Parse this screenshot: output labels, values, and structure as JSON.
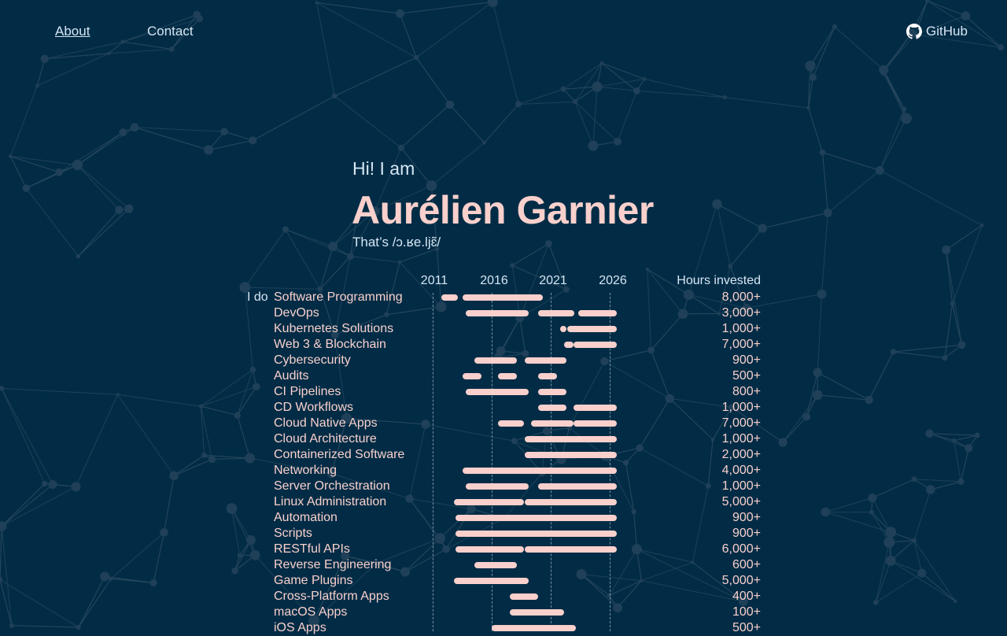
{
  "nav": {
    "about": "About",
    "contact": "Contact",
    "github": "GitHub",
    "github_icon": "github-icon"
  },
  "hero": {
    "greeting": "Hi! I am",
    "name": "Aurélien Garnier",
    "pronunciation": "That’s /ɔ.ʁe.ljɛ̃/"
  },
  "colors": {
    "background": "#022c46",
    "accent": "#f9d0cc",
    "text": "#d6e6f3"
  },
  "chart_data": {
    "type": "timeline",
    "prefix": "I do",
    "x_ticks": [
      "2011",
      "2016",
      "2021",
      "2026"
    ],
    "xlim": [
      2011,
      2026.6
    ],
    "grid": true,
    "value_header": "Hours invested",
    "rows": [
      {
        "label": "Software Programming",
        "hours": "8,000+",
        "spans": [
          [
            2011.7,
            2013.1
          ],
          [
            2013.5,
            2020.3
          ]
        ]
      },
      {
        "label": "DevOps",
        "hours": "3,000+",
        "spans": [
          [
            2013.8,
            2019.1
          ],
          [
            2019.9,
            2023.0
          ],
          [
            2023.3,
            2026.6
          ]
        ]
      },
      {
        "label": "Kubernetes Solutions",
        "hours": "1,000+",
        "spans": [
          [
            2021.8,
            2022.3
          ],
          [
            2022.4,
            2026.6
          ]
        ]
      },
      {
        "label": "Web 3 & Blockchain",
        "hours": "7,000+",
        "spans": [
          [
            2022.1,
            2022.9
          ],
          [
            2022.9,
            2026.6
          ]
        ]
      },
      {
        "label": "Cybersecurity",
        "hours": "900+",
        "spans": [
          [
            2014.5,
            2018.1
          ],
          [
            2018.8,
            2022.3
          ]
        ]
      },
      {
        "label": "Audits",
        "hours": "500+",
        "spans": [
          [
            2013.5,
            2015.1
          ],
          [
            2016.5,
            2018.1
          ],
          [
            2019.9,
            2021.5
          ]
        ]
      },
      {
        "label": "CI Pipelines",
        "hours": "800+",
        "spans": [
          [
            2013.8,
            2019.1
          ],
          [
            2019.9,
            2022.3
          ]
        ]
      },
      {
        "label": "CD Workflows",
        "hours": "1,000+",
        "spans": [
          [
            2019.9,
            2022.3
          ],
          [
            2022.9,
            2026.6
          ]
        ]
      },
      {
        "label": "Cloud Native Apps",
        "hours": "7,000+",
        "spans": [
          [
            2016.5,
            2018.7
          ],
          [
            2019.3,
            2022.9
          ],
          [
            2022.9,
            2026.6
          ]
        ]
      },
      {
        "label": "Cloud Architecture",
        "hours": "1,000+",
        "spans": [
          [
            2018.8,
            2026.6
          ]
        ]
      },
      {
        "label": "Containerized Software",
        "hours": "2,000+",
        "spans": [
          [
            2018.8,
            2026.6
          ]
        ]
      },
      {
        "label": "Networking",
        "hours": "4,000+",
        "spans": [
          [
            2013.5,
            2026.6
          ]
        ]
      },
      {
        "label": "Server Orchestration",
        "hours": "1,000+",
        "spans": [
          [
            2013.8,
            2019.1
          ],
          [
            2019.9,
            2026.6
          ]
        ]
      },
      {
        "label": "Linux Administration",
        "hours": "5,000+",
        "spans": [
          [
            2012.8,
            2018.7
          ],
          [
            2018.8,
            2026.6
          ]
        ]
      },
      {
        "label": "Automation",
        "hours": "900+",
        "spans": [
          [
            2012.9,
            2026.6
          ]
        ]
      },
      {
        "label": "Scripts",
        "hours": "900+",
        "spans": [
          [
            2012.9,
            2026.6
          ]
        ]
      },
      {
        "label": "RESTful APIs",
        "hours": "6,000+",
        "spans": [
          [
            2012.9,
            2018.7
          ],
          [
            2018.8,
            2026.6
          ]
        ]
      },
      {
        "label": "Reverse Engineering",
        "hours": "600+",
        "spans": [
          [
            2014.5,
            2018.1
          ]
        ]
      },
      {
        "label": "Game Plugins",
        "hours": "5,000+",
        "spans": [
          [
            2012.8,
            2019.1
          ]
        ]
      },
      {
        "label": "Cross-Platform Apps",
        "hours": "400+",
        "spans": [
          [
            2017.5,
            2019.9
          ]
        ]
      },
      {
        "label": "macOS Apps",
        "hours": "100+",
        "spans": [
          [
            2017.5,
            2022.1
          ]
        ]
      },
      {
        "label": "iOS Apps",
        "hours": "500+",
        "spans": [
          [
            2016.0,
            2023.1
          ]
        ]
      }
    ]
  }
}
